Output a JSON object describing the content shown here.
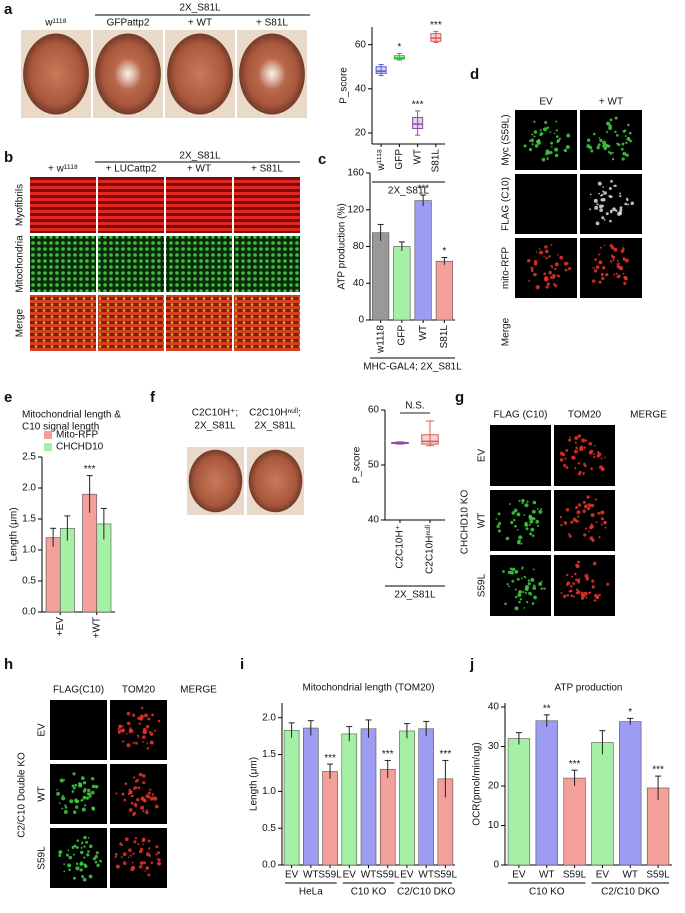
{
  "figure": {
    "panel_labels": [
      "a",
      "b",
      "c",
      "d",
      "e",
      "f",
      "g",
      "h",
      "i",
      "j"
    ],
    "a": {
      "header": "2X_S81L",
      "columns": [
        "w¹¹¹⁸",
        "GFPattp2",
        "+ WT",
        "+ S81L"
      ]
    },
    "b": {
      "header": "2X_S81L",
      "columns": [
        "+ w¹¹¹⁸",
        "+ LUCattp2",
        "+ WT",
        "+ S81L"
      ],
      "rows": [
        "Myofibrils",
        "Mitochondria",
        "Merge"
      ]
    },
    "d": {
      "columns": [
        "EV",
        "+ WT"
      ],
      "rows": [
        "Myc (S59L)",
        "FLAG (C10)",
        "mito-RFP",
        "Merge"
      ]
    },
    "f": {
      "images": [
        [
          "C2C10H⁺;",
          "2X_S81L"
        ],
        [
          "C2C10Hⁿᵘˡˡ;",
          "2X_S81L"
        ]
      ]
    },
    "g": {
      "columns": [
        "FLAG (C10)",
        "TOM20",
        "MERGE"
      ],
      "rows": [
        "EV",
        "WT",
        "S59L"
      ],
      "side": "CHCHD10 KO"
    },
    "h": {
      "columns": [
        "FLAG(C10)",
        "TOM20",
        "MERGE"
      ],
      "rows": [
        "EV",
        "WT",
        "S59L"
      ],
      "side": "C2/C10 Double KO"
    }
  },
  "chart_data": [
    {
      "type": "box",
      "ylabel": "P_score",
      "xlabel": "2X_S81L",
      "categories": [
        "w¹¹¹⁸",
        "GFP",
        "WT",
        "S81L"
      ],
      "colors": [
        "#5b5bd6",
        "#3cb83c",
        "#8a4fa8",
        "#e05555"
      ],
      "boxes": [
        {
          "min": 46,
          "q1": 47,
          "median": 48,
          "q3": 50,
          "max": 51
        },
        {
          "min": 53,
          "q1": 53.5,
          "median": 54,
          "q3": 55,
          "max": 56
        },
        {
          "min": 19,
          "q1": 22,
          "median": 24,
          "q3": 27,
          "max": 30
        },
        {
          "min": 61,
          "q1": 61.5,
          "median": 63,
          "q3": 65,
          "max": 66
        }
      ],
      "annotations": [
        null,
        "*",
        "***",
        "***"
      ],
      "ylim": [
        15,
        68
      ],
      "yticks": [
        20,
        40,
        60
      ]
    },
    {
      "type": "bar",
      "ylabel": "ATP production (%)",
      "xlabel": "MHC-GAL4; 2X_S81L",
      "categories": [
        "w1118",
        "GFP",
        "WT",
        "S81L"
      ],
      "series": [
        {
          "colors": [
            "#999999",
            "#a6f0a6",
            "#9b9cf2",
            "#f4a09a"
          ],
          "values": [
            95,
            80,
            130,
            64
          ],
          "errors": [
            9,
            5,
            6,
            4
          ],
          "annotations": [
            null,
            null,
            "***",
            "*"
          ]
        }
      ],
      "ylim": [
        0,
        160
      ],
      "yticks": [
        0,
        40,
        80,
        120,
        160
      ]
    },
    {
      "type": "bar",
      "title": [
        "Mitochondrial length &",
        "C10 signal length"
      ],
      "ylabel": "Length (μm)",
      "categories": [
        "+EV",
        "+WT"
      ],
      "series": [
        {
          "name": "Mito-RFP",
          "color": "#f4a09a",
          "values": [
            1.2,
            1.9
          ],
          "errors": [
            0.15,
            0.3
          ],
          "annotations": [
            null,
            "***"
          ]
        },
        {
          "name": "CHCHD10",
          "color": "#a6f0a6",
          "values": [
            1.35,
            1.42
          ],
          "errors": [
            0.2,
            0.25
          ]
        }
      ],
      "ylim": [
        0,
        2.5
      ],
      "yticks": [
        {
          "value": 0,
          "label": "0.0"
        },
        0.5,
        {
          "value": 1,
          "label": "1.0"
        },
        1.5,
        {
          "value": 2,
          "label": "2.0"
        },
        2.5
      ]
    },
    {
      "type": "box",
      "ylabel": "P_score",
      "xlabel": "2X_S81L",
      "annotation": "N.S.",
      "categories": [
        "C2C10H⁺",
        "C2C10Hⁿᵘˡˡ"
      ],
      "colors": [
        "#8a4fa8",
        "#e05555"
      ],
      "boxes": [
        {
          "min": 53.8,
          "q1": 53.9,
          "median": 54,
          "q3": 54.1,
          "max": 54.2
        },
        {
          "min": 53.5,
          "q1": 53.8,
          "median": 54.3,
          "q3": 55.5,
          "max": 58
        }
      ],
      "ylim": [
        40,
        60
      ],
      "yticks": [
        40,
        50,
        60
      ]
    },
    {
      "type": "bar",
      "title": "Mitochondrial length (TOM20)",
      "ylabel": "Length (μm)",
      "categories": [
        "EV",
        "WT",
        "S59L",
        "EV",
        "WT",
        "S59L",
        "EV",
        "WT",
        "S59L"
      ],
      "groups": [
        "HeLa",
        "C10 KO",
        "C2/C10 DKO"
      ],
      "series": [
        {
          "colors": [
            "#a6f0a6",
            "#9b9cf2",
            "#f4a09a",
            "#a6f0a6",
            "#9b9cf2",
            "#f4a09a",
            "#a6f0a6",
            "#9b9cf2",
            "#f4a09a"
          ],
          "values": [
            1.83,
            1.86,
            1.27,
            1.78,
            1.85,
            1.3,
            1.82,
            1.85,
            1.17
          ],
          "errors": [
            0.1,
            0.1,
            0.1,
            0.1,
            0.12,
            0.12,
            0.1,
            0.1,
            0.25
          ],
          "annotations": [
            null,
            null,
            "***",
            null,
            null,
            "***",
            null,
            null,
            "***"
          ]
        }
      ],
      "ylim": [
        0,
        2.2
      ],
      "yticks": [
        {
          "value": 0,
          "label": "0.0"
        },
        0.5,
        {
          "value": 1,
          "label": "1.0"
        },
        1.5,
        {
          "value": 2,
          "label": "2.0"
        }
      ]
    },
    {
      "type": "bar",
      "title": "ATP production",
      "ylabel": "OCR(pmol/min/ug)",
      "categories": [
        "EV",
        "WT",
        "S59L",
        "EV",
        "WT",
        "S59L"
      ],
      "groups": [
        "C10 KO",
        "C2/C10 DKO"
      ],
      "series": [
        {
          "colors": [
            "#a6f0a6",
            "#9b9cf2",
            "#f4a09a",
            "#a6f0a6",
            "#9b9cf2",
            "#f4a09a"
          ],
          "values": [
            32,
            36.5,
            22,
            31,
            36.3,
            19.5
          ],
          "errors": [
            1.5,
            1.5,
            2,
            3,
            0.8,
            3
          ],
          "annotations": [
            null,
            "**",
            "***",
            null,
            "*",
            "***"
          ]
        }
      ],
      "ylim": [
        0,
        41
      ],
      "yticks": [
        0,
        10,
        20,
        30,
        40
      ]
    }
  ]
}
